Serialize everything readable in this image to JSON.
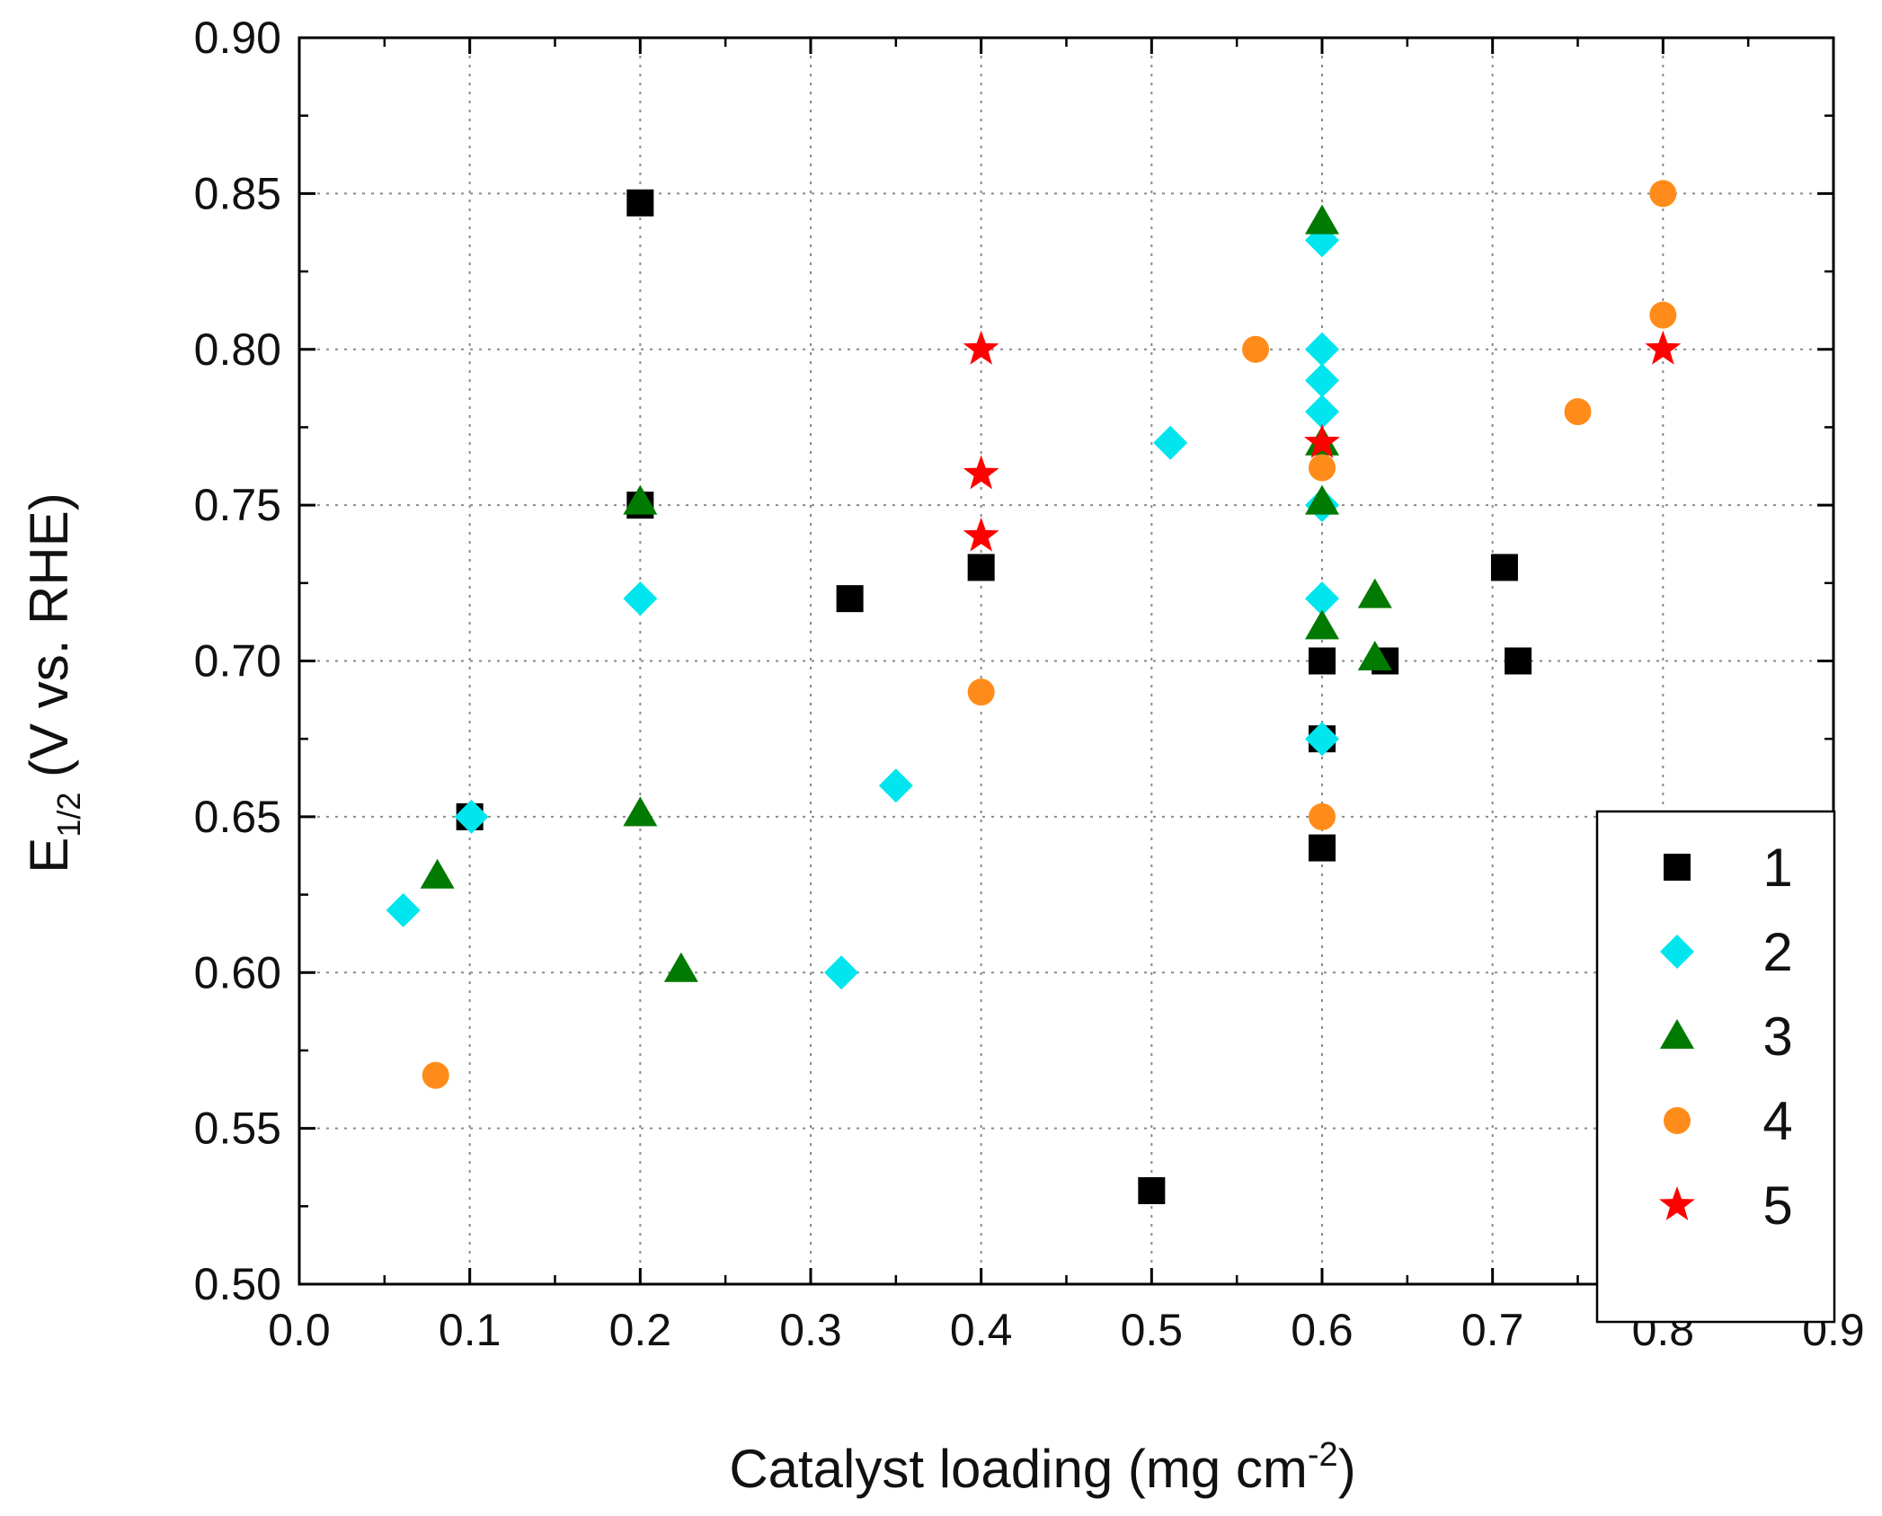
{
  "chart_data": {
    "type": "scatter",
    "title": "",
    "xlabel": "Catalyst loading (mg cm",
    "xlabel_sup": "-2",
    "xlabel_close": ")",
    "ylabel_main": "E",
    "ylabel_sub": "1/2",
    "ylabel_rest": " (V vs. RHE)",
    "xlim": [
      0.0,
      0.9
    ],
    "ylim": [
      0.5,
      0.9
    ],
    "x_ticks": [
      "0.0",
      "0.1",
      "0.2",
      "0.3",
      "0.4",
      "0.5",
      "0.6",
      "0.7",
      "0.8",
      "0.9"
    ],
    "y_ticks": [
      "0.50",
      "0.55",
      "0.60",
      "0.65",
      "0.70",
      "0.75",
      "0.80",
      "0.85",
      "0.90"
    ],
    "grid": true,
    "legend_position": "bottom-right",
    "series": [
      {
        "name": "1",
        "marker": "square",
        "color": "#000000",
        "points": [
          [
            0.2,
            0.847
          ],
          [
            0.2,
            0.75
          ],
          [
            0.323,
            0.72
          ],
          [
            0.4,
            0.73
          ],
          [
            0.1,
            0.65
          ],
          [
            0.5,
            0.53
          ],
          [
            0.6,
            0.7
          ],
          [
            0.6,
            0.64
          ],
          [
            0.6,
            0.675
          ],
          [
            0.637,
            0.7
          ],
          [
            0.707,
            0.73
          ],
          [
            0.715,
            0.7
          ]
        ]
      },
      {
        "name": "2",
        "marker": "diamond",
        "color": "#00e5ee",
        "points": [
          [
            0.061,
            0.62
          ],
          [
            0.101,
            0.65
          ],
          [
            0.2,
            0.72
          ],
          [
            0.318,
            0.6
          ],
          [
            0.35,
            0.66
          ],
          [
            0.511,
            0.77
          ],
          [
            0.6,
            0.835
          ],
          [
            0.6,
            0.8
          ],
          [
            0.6,
            0.79
          ],
          [
            0.6,
            0.78
          ],
          [
            0.6,
            0.75
          ],
          [
            0.6,
            0.72
          ],
          [
            0.6,
            0.675
          ]
        ]
      },
      {
        "name": "3",
        "marker": "triangle",
        "color": "#007a00",
        "points": [
          [
            0.081,
            0.631
          ],
          [
            0.2,
            0.751
          ],
          [
            0.2,
            0.651
          ],
          [
            0.224,
            0.601
          ],
          [
            0.6,
            0.841
          ],
          [
            0.6,
            0.77
          ],
          [
            0.6,
            0.751
          ],
          [
            0.6,
            0.711
          ],
          [
            0.631,
            0.721
          ],
          [
            0.631,
            0.701
          ]
        ]
      },
      {
        "name": "4",
        "marker": "circle",
        "color": "#ff8c1a",
        "points": [
          [
            0.08,
            0.567
          ],
          [
            0.4,
            0.69
          ],
          [
            0.561,
            0.8
          ],
          [
            0.6,
            0.762
          ],
          [
            0.6,
            0.65
          ],
          [
            0.75,
            0.78
          ],
          [
            0.8,
            0.85
          ],
          [
            0.8,
            0.811
          ]
        ]
      },
      {
        "name": "5",
        "marker": "star",
        "color": "#ff0000",
        "points": [
          [
            0.4,
            0.8
          ],
          [
            0.4,
            0.76
          ],
          [
            0.4,
            0.74
          ],
          [
            0.6,
            0.77
          ],
          [
            0.8,
            0.8
          ]
        ]
      }
    ]
  }
}
